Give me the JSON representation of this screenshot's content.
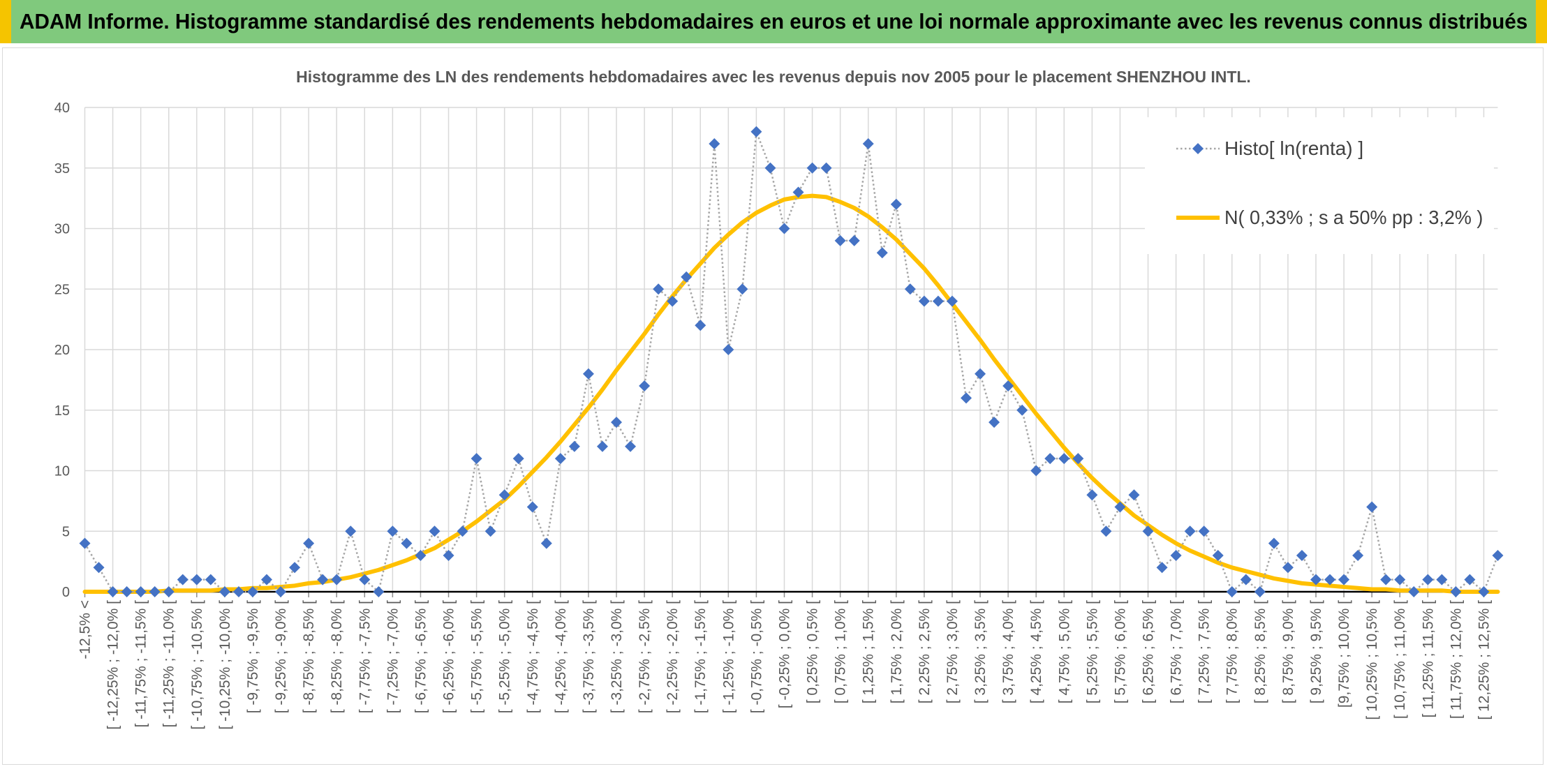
{
  "header": {
    "title": "ADAM Informe. Histogramme standardisé des rendements hebdomadaires en euros et une loi normale approximante avec les revenus connus distribués"
  },
  "colors": {
    "banner": "#80c97d",
    "banner_corner": "#f5c400",
    "frame": "#d9d9d9",
    "gridline": "#d9d9d9",
    "axis": "#000000",
    "tick_text": "#595959"
  },
  "chart_data": {
    "type": "line",
    "title": "Histogramme des LN des rendements hebdomadaires avec les revenus depuis nov 2005 pour le placement SHENZHOU INTL.",
    "ylim": [
      0,
      40
    ],
    "y_ticks": [
      0,
      5,
      10,
      15,
      20,
      25,
      30,
      35,
      40
    ],
    "grid": true,
    "legend": {
      "position": "top-right"
    },
    "x_tick_labels": [
      "-12,5% <",
      "[ -12,25% ; -12,0% [",
      "[ -11,75% ; -11,5% [",
      "[ -11,25% ; -11,0% [",
      "[ -10,75% ; -10,5% [",
      "[ -10,25% ; -10,0% [",
      "[ -9,75% ; -9,5% [",
      "[ -9,25% ; -9,0% [",
      "[ -8,75% ; -8,5% [",
      "[ -8,25% ; -8,0% [",
      "[ -7,75% ; -7,5% [",
      "[ -7,25% ; -7,0% [",
      "[ -6,75% ; -6,5% [",
      "[ -6,25% ; -6,0% [",
      "[ -5,75% ; -5,5% [",
      "[ -5,25% ; -5,0% [",
      "[ -4,75% ; -4,5% [",
      "[ -4,25% ; -4,0% [",
      "[ -3,75% ; -3,5% [",
      "[ -3,25% ; -3,0% [",
      "[ -2,75% ; -2,5% [",
      "[ -2,25% ; -2,0% [",
      "[ -1,75% ; -1,5% [",
      "[ -1,25% ; -1,0% [",
      "[ -0,75% ; -0,5% [",
      "[ -0,25% ; 0,0% [",
      "[ 0,25% ; 0,5% [",
      "[ 0,75% ; 1,0% [",
      "[ 1,25% ; 1,5% [",
      "[ 1,75% ; 2,0% [",
      "[ 2,25% ; 2,5% [",
      "[ 2,75% ; 3,0% [",
      "[ 3,25% ; 3,5% [",
      "[ 3,75% ; 4,0% [",
      "[ 4,25% ; 4,5% [",
      "[ 4,75% ; 5,0% [",
      "[ 5,25% ; 5,5% [",
      "[ 5,75% ; 6,0% [",
      "[ 6,25% ; 6,5% [",
      "[ 6,75% ; 7,0% [",
      "[ 7,25% ; 7,5% [",
      "[ 7,75% ; 8,0% [",
      "[ 8,25% ; 8,5% [",
      "[ 8,75% ; 9,0% [",
      "[ 9,25% ; 9,5% [",
      "[9,75% ; 10,0% [",
      "[ 10,25% ; 10,5% [",
      "[ 10,75% ; 11,0% [",
      "[ 11,25% ; 11,5% [",
      "[ 11,75% ; 12,0% [",
      "[ 12,25% ; 12,5% ["
    ],
    "series": [
      {
        "name": "Histo[ ln(renta) ]",
        "marker": "diamond",
        "line_style": "dotted",
        "marker_color": "#4472c4",
        "line_color": "#a5a5a5",
        "values": [
          4,
          2,
          0,
          0,
          0,
          0,
          0,
          1,
          1,
          1,
          0,
          0,
          0,
          1,
          0,
          2,
          4,
          1,
          1,
          5,
          1,
          0,
          5,
          4,
          3,
          5,
          3,
          5,
          11,
          5,
          8,
          11,
          7,
          4,
          11,
          12,
          18,
          12,
          14,
          12,
          17,
          25,
          24,
          26,
          22,
          37,
          20,
          25,
          38,
          35,
          30,
          33,
          35,
          35,
          29,
          29,
          37,
          28,
          32,
          25,
          24,
          24,
          24,
          16,
          18,
          14,
          17,
          15,
          10,
          11,
          11,
          11,
          8,
          5,
          7,
          8,
          5,
          2,
          3,
          5,
          5,
          3,
          0,
          1,
          0,
          4,
          2,
          3,
          1,
          1,
          1,
          3,
          7,
          1,
          1,
          0,
          1,
          1,
          0,
          1,
          0,
          3
        ]
      },
      {
        "name": "N( 0,33% ; s a 50% pp : 3,2% )",
        "line_style": "solid",
        "line_color": "#ffc000",
        "values": [
          0.0,
          0.0,
          0.0,
          0.0,
          0.0,
          0.0,
          0.1,
          0.1,
          0.1,
          0.1,
          0.2,
          0.2,
          0.3,
          0.3,
          0.4,
          0.5,
          0.7,
          0.8,
          1.0,
          1.2,
          1.5,
          1.8,
          2.2,
          2.6,
          3.1,
          3.6,
          4.3,
          5.0,
          5.8,
          6.7,
          7.6,
          8.7,
          9.9,
          11.1,
          12.4,
          13.8,
          15.2,
          16.7,
          18.3,
          19.8,
          21.3,
          22.9,
          24.4,
          25.8,
          27.1,
          28.4,
          29.5,
          30.5,
          31.3,
          31.9,
          32.4,
          32.6,
          32.7,
          32.6,
          32.2,
          31.7,
          31.0,
          30.1,
          29.1,
          27.9,
          26.7,
          25.3,
          23.8,
          22.3,
          20.8,
          19.2,
          17.7,
          16.2,
          14.7,
          13.3,
          11.9,
          10.6,
          9.4,
          8.3,
          7.3,
          6.3,
          5.5,
          4.7,
          4.0,
          3.4,
          2.9,
          2.4,
          2.0,
          1.7,
          1.4,
          1.1,
          0.9,
          0.7,
          0.6,
          0.5,
          0.4,
          0.3,
          0.2,
          0.2,
          0.1,
          0.1,
          0.1,
          0.1,
          0.0,
          0.0,
          0.0,
          0.0
        ]
      }
    ]
  }
}
